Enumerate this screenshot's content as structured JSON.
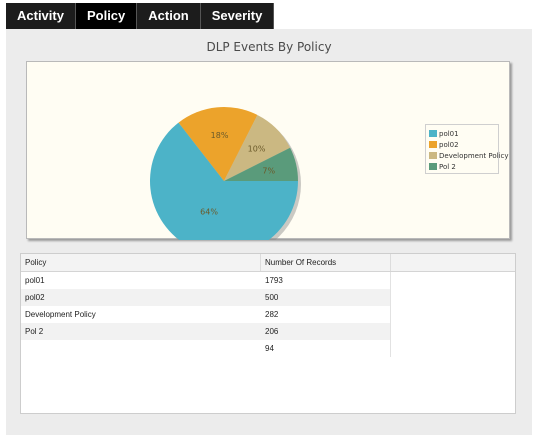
{
  "tabs": [
    {
      "label": "Activity",
      "active": false
    },
    {
      "label": "Policy",
      "active": true
    },
    {
      "label": "Action",
      "active": false
    },
    {
      "label": "Severity",
      "active": false
    }
  ],
  "chart_data": {
    "type": "pie",
    "title": "DLP Events By Policy",
    "labels": [
      "pol01",
      "pol02",
      "Development Policy",
      "Pol 2"
    ],
    "values": [
      1793,
      500,
      282,
      206
    ],
    "percent_labels": [
      "64%",
      "18%",
      "10%",
      "7%"
    ],
    "colors": [
      "#4cb3c8",
      "#eca32b",
      "#cbb882",
      "#5a9b7b"
    ],
    "legend_position": "right"
  },
  "table": {
    "headers": [
      "Policy",
      "Number Of Records",
      ""
    ],
    "rows": [
      [
        "pol01",
        "1793"
      ],
      [
        "pol02",
        "500"
      ],
      [
        "Development Policy",
        "282"
      ],
      [
        "Pol 2",
        "206"
      ],
      [
        "",
        "94"
      ]
    ]
  }
}
